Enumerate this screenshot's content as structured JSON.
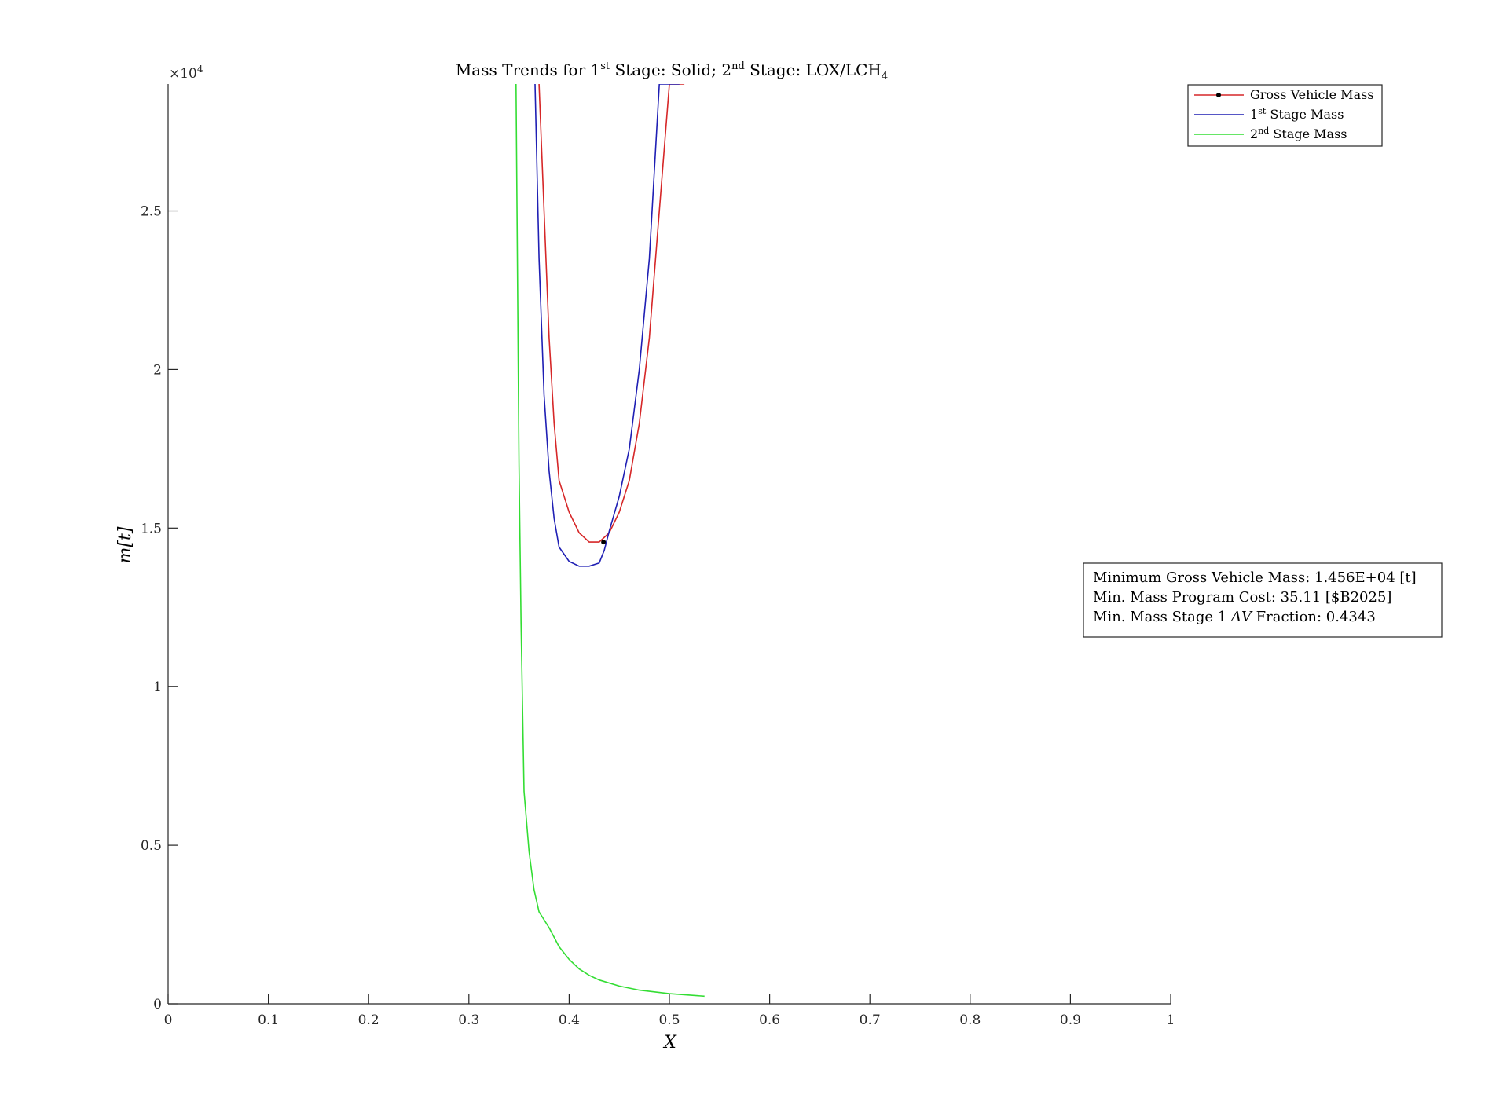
{
  "chart_data": {
    "type": "line",
    "title": {
      "prefix": "Mass Trends for 1",
      "sup1": "st",
      "mid": " Stage: Solid; 2",
      "sup2": "nd",
      "mid2": " Stage: LOX/LCH",
      "sub": "4"
    },
    "xlabel": "X",
    "ylabel": "m[t]",
    "y_exponent_label": "×10",
    "y_exponent_power": "4",
    "xlim": [
      0,
      1
    ],
    "ylim": [
      0,
      29000
    ],
    "x_ticks": [
      0,
      0.1,
      0.2,
      0.3,
      0.4,
      0.5,
      0.6,
      0.7,
      0.8,
      0.9,
      1
    ],
    "x_tick_labels": [
      "0",
      "0.1",
      "0.2",
      "0.3",
      "0.4",
      "0.5",
      "0.6",
      "0.7",
      "0.8",
      "0.9",
      "1"
    ],
    "y_ticks": [
      0,
      5000,
      10000,
      15000,
      20000,
      25000
    ],
    "y_tick_labels": [
      "0",
      "0.5",
      "1",
      "1.5",
      "2",
      "2.5"
    ],
    "grid": false,
    "legend_position": "top-right",
    "series": [
      {
        "name": "Gross Vehicle Mass",
        "name_parts": {
          "pre": "Gross Vehicle Mass",
          "sup": "",
          "post": ""
        },
        "color": "#d62728",
        "marker_point": {
          "x": 0.4343,
          "y": 14560
        },
        "x": [
          0.37,
          0.375,
          0.38,
          0.385,
          0.39,
          0.4,
          0.41,
          0.42,
          0.43,
          0.44,
          0.45,
          0.46,
          0.47,
          0.48,
          0.49,
          0.5,
          0.51,
          0.515
        ],
        "y": [
          29000,
          25000,
          21000,
          18300,
          16500,
          15500,
          14850,
          14560,
          14560,
          14850,
          15500,
          16500,
          18300,
          21000,
          25000,
          29000,
          29000,
          29000
        ]
      },
      {
        "name": "1st Stage Mass",
        "name_parts": {
          "pre": "1",
          "sup": "st",
          "post": " Stage Mass"
        },
        "color": "#1f1fb4",
        "x": [
          0.366,
          0.37,
          0.375,
          0.38,
          0.385,
          0.39,
          0.4,
          0.41,
          0.42,
          0.43,
          0.435,
          0.44,
          0.45,
          0.46,
          0.47,
          0.48,
          0.49,
          0.5,
          0.51
        ],
        "y": [
          29000,
          23500,
          19200,
          16800,
          15300,
          14400,
          13950,
          13800,
          13800,
          13900,
          14300,
          14900,
          16000,
          17500,
          20000,
          23500,
          29000,
          29000,
          29000
        ]
      },
      {
        "name": "2nd Stage Mass",
        "name_parts": {
          "pre": "2",
          "sup": "nd",
          "post": " Stage Mass"
        },
        "color": "#33dd33",
        "x": [
          0.347,
          0.35,
          0.352,
          0.355,
          0.36,
          0.365,
          0.37,
          0.38,
          0.39,
          0.4,
          0.41,
          0.42,
          0.43,
          0.45,
          0.47,
          0.5,
          0.535
        ],
        "y": [
          29000,
          17000,
          12000,
          6700,
          4800,
          3600,
          2900,
          2400,
          1800,
          1400,
          1100,
          900,
          750,
          560,
          430,
          320,
          240
        ]
      }
    ],
    "annotation": {
      "line1": "Minimum Gross Vehicle Mass: 1.456E+04 [t]",
      "line2": "Min. Mass Program Cost: 35.11 [$B2025]",
      "line3_pre": "Min. Mass Stage 1 ",
      "line3_math": "ΔV",
      "line3_post": " Fraction: 0.4343"
    }
  }
}
